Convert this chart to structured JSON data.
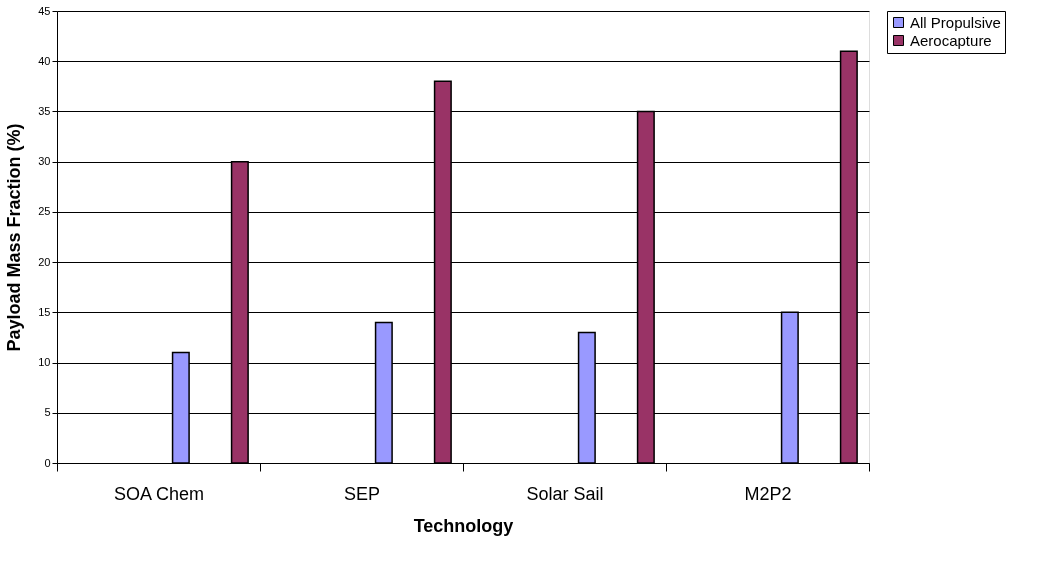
{
  "chart_data": {
    "type": "bar",
    "xlabel": "Technology",
    "ylabel": "Payload Mass Fraction (%)",
    "categories": [
      "SOA Chem",
      "SEP",
      "Solar Sail",
      "M2P2"
    ],
    "series": [
      {
        "name": "All Propulsive",
        "color": "#9999ff",
        "values": [
          11,
          14,
          13,
          15
        ]
      },
      {
        "name": "Aerocapture",
        "color": "#993366",
        "values": [
          30,
          38,
          35,
          41
        ]
      }
    ],
    "ylim": [
      0,
      45
    ],
    "yticks": [
      0,
      5,
      10,
      15,
      20,
      25,
      30,
      35,
      40,
      45
    ],
    "grid": "y",
    "legend": "right"
  }
}
